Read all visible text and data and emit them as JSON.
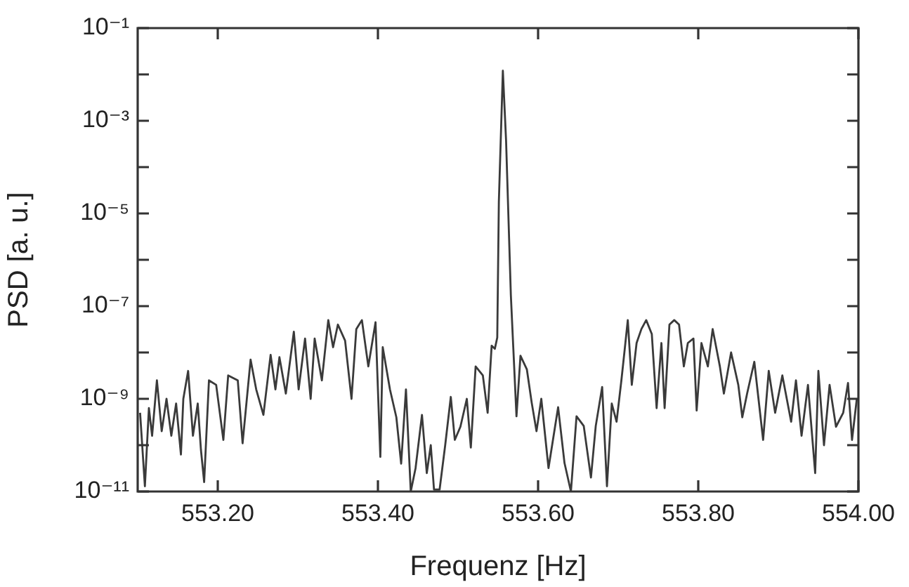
{
  "chart_data": {
    "type": "line",
    "xlabel": "Frequenz [Hz]",
    "ylabel": "PSD [a. u.]",
    "log": "y",
    "grid": false,
    "legend": false,
    "marker": "none",
    "line_style": "solid",
    "xlim": [
      553.1,
      554.0
    ],
    "xticks": [
      {
        "value": 553.2,
        "label": "553.20"
      },
      {
        "value": 553.4,
        "label": "553.40"
      },
      {
        "value": 553.6,
        "label": "553.60"
      },
      {
        "value": 553.8,
        "label": "553.80"
      },
      {
        "value": 554.0,
        "label": "554.00"
      }
    ],
    "ylim": [
      1e-11,
      0.1
    ],
    "yticks": [
      {
        "value": 1e-11,
        "label": "10⁻¹¹"
      },
      {
        "value": 1e-10,
        "label": null
      },
      {
        "value": 1e-09,
        "label": "10⁻⁹"
      },
      {
        "value": 1e-08,
        "label": null
      },
      {
        "value": 1e-07,
        "label": "10⁻⁷"
      },
      {
        "value": 1e-06,
        "label": null
      },
      {
        "value": 1e-05,
        "label": "10⁻⁵"
      },
      {
        "value": 0.0001,
        "label": null
      },
      {
        "value": 0.001,
        "label": "10⁻³"
      },
      {
        "value": 0.01,
        "label": null
      },
      {
        "value": 0.1,
        "label": "10⁻¹"
      }
    ],
    "series": [
      {
        "color": "#3a3a3a",
        "x": [
          553.103,
          553.109,
          553.114,
          553.118,
          553.124,
          553.13,
          553.136,
          553.142,
          553.148,
          553.154,
          553.157,
          553.163,
          553.169,
          553.175,
          553.179,
          553.183,
          553.189,
          553.198,
          553.207,
          553.213,
          553.225,
          553.231,
          553.241,
          553.248,
          553.257,
          553.266,
          553.272,
          553.277,
          553.285,
          553.295,
          553.301,
          553.309,
          553.316,
          553.321,
          553.33,
          553.338,
          553.344,
          553.35,
          553.359,
          553.367,
          553.373,
          553.38,
          553.388,
          553.397,
          553.403,
          553.406,
          553.415,
          553.423,
          553.429,
          553.435,
          553.441,
          553.447,
          553.455,
          553.461,
          553.466,
          553.47,
          553.477,
          553.484,
          553.491,
          553.496,
          553.503,
          553.511,
          553.516,
          553.522,
          553.531,
          553.537,
          553.542,
          553.546,
          553.549,
          553.551,
          553.556,
          553.56,
          553.566,
          553.569,
          553.573,
          553.578,
          553.586,
          553.592,
          553.598,
          553.604,
          553.613,
          553.625,
          553.633,
          553.641,
          553.648,
          553.657,
          553.666,
          553.672,
          553.68,
          553.686,
          553.692,
          553.698,
          553.704,
          553.708,
          553.712,
          553.717,
          553.723,
          553.729,
          553.735,
          553.742,
          553.748,
          553.754,
          553.758,
          553.764,
          553.77,
          553.776,
          553.782,
          553.787,
          553.794,
          553.798,
          553.804,
          553.812,
          553.818,
          553.827,
          553.832,
          553.841,
          553.85,
          553.855,
          553.861,
          553.87,
          553.881,
          553.888,
          553.896,
          553.905,
          553.916,
          553.922,
          553.929,
          553.937,
          553.946,
          553.95,
          553.957,
          553.964,
          553.972,
          553.981,
          553.987,
          553.992,
          553.998
        ],
        "values": [
          5e-10,
          1.3e-11,
          6.3e-10,
          1.6e-10,
          2.5e-09,
          2e-10,
          1e-09,
          1.6e-10,
          7.9e-10,
          6.3e-11,
          1e-09,
          4e-09,
          1.6e-10,
          7.9e-10,
          7.9e-11,
          1.6e-11,
          2.5e-09,
          2e-09,
          1.3e-10,
          3.2e-09,
          2.5e-09,
          1.1e-10,
          7e-09,
          1.6e-09,
          4.5e-10,
          8.9e-09,
          1.6e-09,
          7.9e-09,
          1.3e-09,
          2.8e-08,
          1.6e-09,
          2e-08,
          1e-09,
          2e-08,
          2.5e-09,
          5e-08,
          1.3e-08,
          4e-08,
          1.8e-08,
          1e-09,
          3.2e-08,
          5e-08,
          5e-09,
          4.5e-08,
          5.6e-11,
          1.3e-08,
          1.6e-09,
          4e-10,
          4e-11,
          1.6e-09,
          1e-11,
          3.2e-11,
          4.5e-10,
          2.5e-11,
          1e-10,
          1.1e-11,
          1.1e-11,
          1e-10,
          1.1e-09,
          1.3e-10,
          2.5e-10,
          1e-09,
          8.9e-11,
          5e-09,
          3.2e-09,
          5e-10,
          1.4e-08,
          1.2e-08,
          2.1e-08,
          1.8e-05,
          0.012,
          0.00038,
          1.7e-07,
          1.3e-08,
          4.2e-10,
          8.5e-09,
          4.3e-09,
          8.3e-10,
          2e-10,
          1e-09,
          3.2e-11,
          6.6e-10,
          4.1e-11,
          1e-11,
          4.2e-10,
          2.6e-10,
          2e-11,
          2.6e-10,
          1.8e-09,
          1.3e-11,
          7.9e-10,
          3.2e-10,
          2.5e-09,
          1.1e-08,
          5e-08,
          2e-09,
          1.6e-08,
          3.2e-08,
          5e-08,
          2.5e-08,
          6.3e-10,
          1.6e-08,
          6.3e-10,
          4e-08,
          5e-08,
          4e-08,
          5e-09,
          1.6e-08,
          2e-08,
          5.6e-10,
          1.6e-08,
          5e-09,
          3.2e-08,
          5e-09,
          1.3e-09,
          1e-08,
          2e-09,
          4e-10,
          1.3e-09,
          6.3e-09,
          1.3e-10,
          4e-09,
          5e-10,
          3.2e-09,
          3.2e-10,
          2.5e-09,
          1.6e-10,
          2e-09,
          2.5e-11,
          4e-09,
          1e-10,
          2e-09,
          2.5e-10,
          5e-10,
          2.2e-09,
          1.3e-10,
          1e-09
        ]
      }
    ]
  }
}
